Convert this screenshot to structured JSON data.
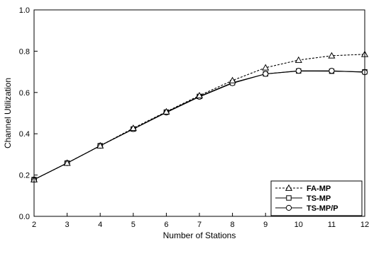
{
  "chart_data": {
    "type": "line",
    "title": "",
    "xlabel": "Number of Stations",
    "ylabel": "Channel Utilization",
    "xlim": [
      2,
      12
    ],
    "ylim": [
      0.0,
      1.0
    ],
    "x_ticks": [
      "2",
      "3",
      "4",
      "5",
      "6",
      "7",
      "8",
      "9",
      "10",
      "11",
      "12"
    ],
    "y_ticks": [
      "0.0",
      "0.2",
      "0.4",
      "0.6",
      "0.8",
      "1.0"
    ],
    "grid": false,
    "legend_position": "bottom-right",
    "x": [
      2,
      3,
      4,
      5,
      6,
      7,
      8,
      9,
      10,
      11,
      12
    ],
    "series": [
      {
        "name": "FA-MP",
        "marker": "triangle",
        "line": "dashed",
        "values": [
          0.178,
          0.258,
          0.342,
          0.427,
          0.507,
          0.585,
          0.658,
          0.72,
          0.757,
          0.778,
          0.785
        ]
      },
      {
        "name": "TS-MP",
        "marker": "square",
        "line": "solid",
        "values": [
          0.178,
          0.258,
          0.342,
          0.423,
          0.505,
          0.581,
          0.647,
          0.69,
          0.704,
          0.703,
          0.7
        ]
      },
      {
        "name": "TS-MP/P",
        "marker": "circle",
        "line": "solid",
        "values": [
          0.178,
          0.258,
          0.342,
          0.423,
          0.503,
          0.579,
          0.645,
          0.69,
          0.705,
          0.705,
          0.698
        ]
      }
    ],
    "colors": {
      "line": "#000000",
      "marker_fill": "#ffffff"
    }
  }
}
